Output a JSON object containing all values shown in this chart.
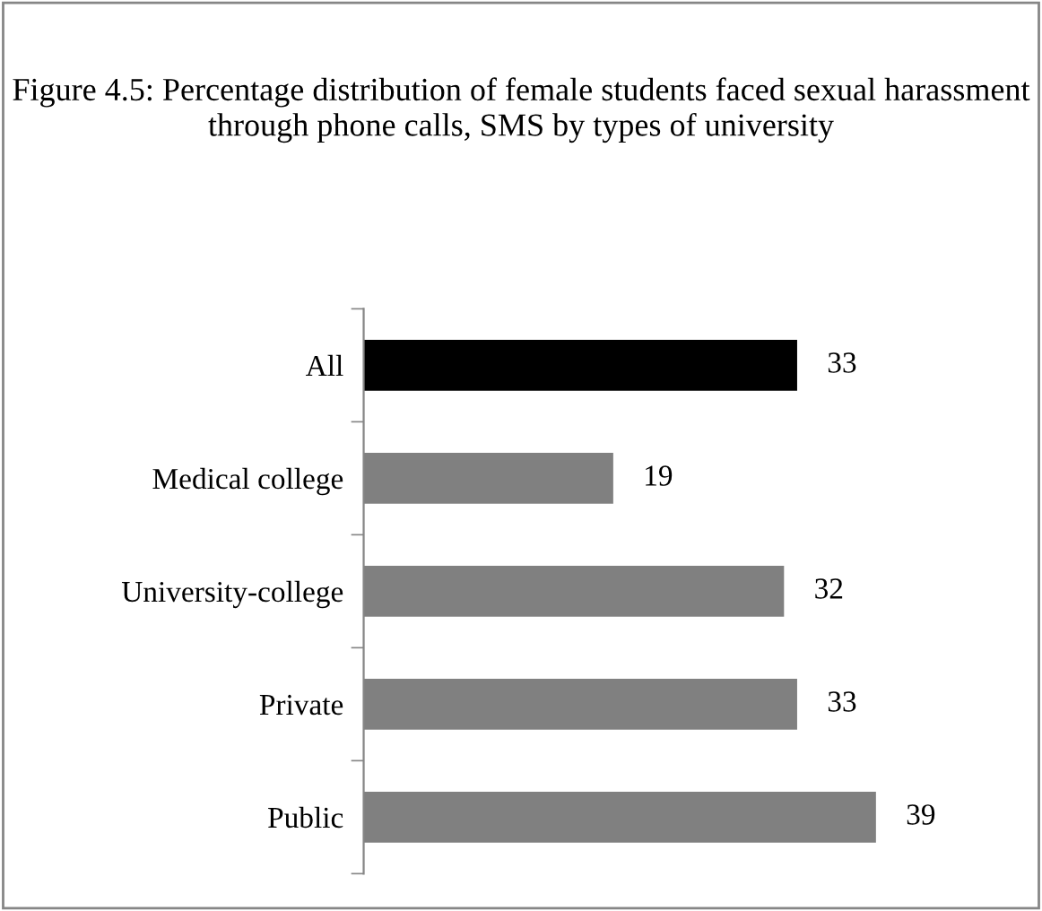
{
  "chart_data": {
    "type": "bar",
    "orientation": "horizontal",
    "title": "Figure 4.5: Percentage distribution of female students faced sexual harassment through phone calls, SMS by types of university",
    "categories": [
      "All",
      "Medical college",
      "University-college",
      "Private",
      "Public"
    ],
    "values": [
      33,
      19,
      32,
      33,
      39
    ],
    "colors": [
      "#000000",
      "#808080",
      "#808080",
      "#808080",
      "#808080"
    ],
    "data_labels": true,
    "grid": false,
    "legend": false
  }
}
